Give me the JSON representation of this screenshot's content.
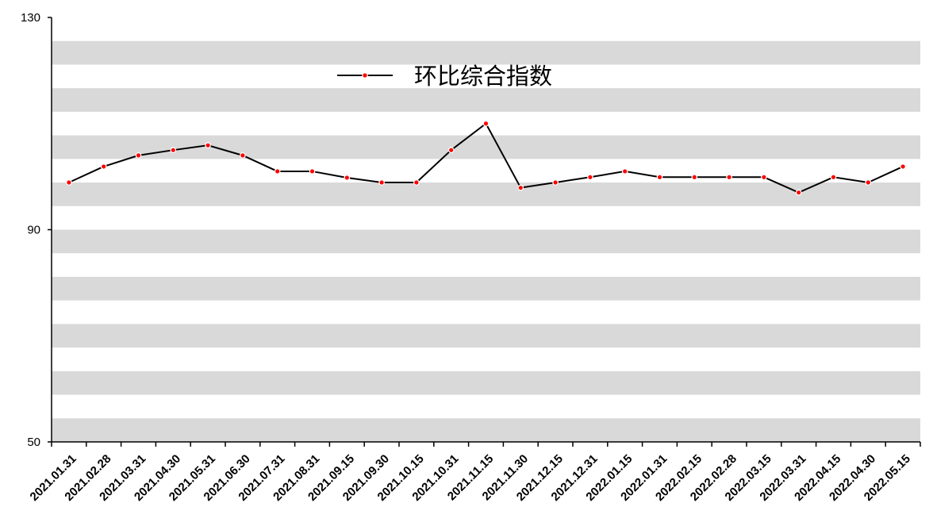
{
  "chart_data": {
    "type": "line",
    "categories": [
      "2021.01.31",
      "2021.02.28",
      "2021.03.31",
      "2021.04.30",
      "2021.05.31",
      "2021.06.30",
      "2021.07.31",
      "2021.08.31",
      "2021.09.15",
      "2021.09.30",
      "2021.10.15",
      "2021.10.31",
      "2021.11.15",
      "2021.11.30",
      "2021.12.15",
      "2021.12.31",
      "2022.01.15",
      "2022.01.31",
      "2022.02.15",
      "2022.02.28",
      "2022.03.15",
      "2022.03.31",
      "2022.04.15",
      "2022.04.30",
      "2022.05.15"
    ],
    "series": [
      {
        "name": "环比综合指数",
        "color": "#000000",
        "marker_color": "#ff0000",
        "values": [
          98.9,
          101.9,
          104.0,
          105.0,
          105.9,
          104.0,
          101.0,
          101.0,
          99.8,
          98.9,
          98.9,
          105.0,
          110.0,
          97.9,
          98.9,
          99.9,
          101.0,
          99.9,
          99.9,
          99.9,
          99.9,
          97.0,
          99.9,
          98.9,
          101.9
        ]
      }
    ],
    "ylim": [
      50,
      130
    ],
    "yticks": [
      50,
      90,
      130
    ],
    "legend": "top-center",
    "stripes": true
  }
}
